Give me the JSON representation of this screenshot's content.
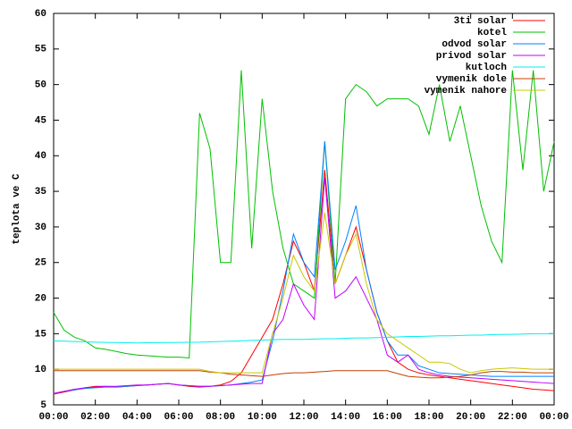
{
  "chart_data": {
    "type": "line",
    "ylabel": "teplota ve C",
    "x": [
      0,
      0.5,
      1,
      1.5,
      2,
      2.5,
      3,
      3.5,
      4,
      4.5,
      5,
      5.5,
      6,
      6.5,
      7,
      7.5,
      8,
      8.5,
      9,
      9.5,
      10,
      10.5,
      11,
      11.5,
      12,
      12.5,
      13,
      13.5,
      14,
      14.5,
      15,
      15.5,
      16,
      16.5,
      17,
      17.5,
      18,
      18.5,
      19,
      19.5,
      20,
      20.5,
      21,
      21.5,
      22,
      22.5,
      23,
      23.5,
      24
    ],
    "xlim": [
      0,
      24
    ],
    "xticks": [
      {
        "value": 0,
        "label": "00:00"
      },
      {
        "value": 2,
        "label": "02:00"
      },
      {
        "value": 4,
        "label": "04:00"
      },
      {
        "value": 6,
        "label": "06:00"
      },
      {
        "value": 8,
        "label": "08:00"
      },
      {
        "value": 10,
        "label": "10:00"
      },
      {
        "value": 12,
        "label": "12:00"
      },
      {
        "value": 14,
        "label": "14:00"
      },
      {
        "value": 16,
        "label": "16:00"
      },
      {
        "value": 18,
        "label": "18:00"
      },
      {
        "value": 20,
        "label": "20:00"
      },
      {
        "value": 22,
        "label": "22:00"
      },
      {
        "value": 24,
        "label": "00:00"
      }
    ],
    "ylim": [
      5,
      60
    ],
    "yticks": [
      5,
      10,
      15,
      20,
      25,
      30,
      35,
      40,
      45,
      50,
      55,
      60
    ],
    "legend": "top-right",
    "series": [
      {
        "name": "3ti solar",
        "color": "#ff0000",
        "values": [
          6.5,
          6.8,
          7.1,
          7.4,
          7.6,
          7.6,
          7.5,
          7.6,
          7.7,
          7.8,
          7.9,
          8.0,
          7.8,
          7.6,
          7.5,
          7.6,
          7.8,
          8.3,
          9.5,
          12,
          14.5,
          17,
          22,
          28,
          25,
          21,
          38,
          22,
          26,
          30,
          24,
          18,
          14,
          11,
          10,
          9.5,
          9.2,
          9,
          8.8,
          8.6,
          8.4,
          8.2,
          8,
          7.8,
          7.6,
          7.4,
          7.2,
          7.1,
          7.0
        ]
      },
      {
        "name": "kotel",
        "color": "#00c000",
        "values": [
          18,
          15.5,
          14.5,
          14,
          13,
          12.8,
          12.5,
          12.2,
          12,
          11.9,
          11.8,
          11.7,
          11.7,
          11.6,
          46,
          41,
          25,
          25,
          52,
          27,
          48,
          35,
          27,
          22,
          21,
          20,
          42,
          22,
          48,
          50,
          49,
          47,
          48,
          48,
          48,
          47,
          43,
          50,
          42,
          47,
          40,
          33,
          28,
          25,
          52,
          38,
          52,
          35,
          42
        ]
      },
      {
        "name": "odvod solar",
        "color": "#0080ff",
        "values": [
          6.6,
          6.9,
          7.1,
          7.3,
          7.4,
          7.5,
          7.5,
          7.6,
          7.7,
          7.8,
          7.9,
          8.0,
          7.8,
          7.7,
          7.6,
          7.6,
          7.7,
          7.8,
          8.0,
          8.2,
          8.5,
          14,
          21,
          29,
          25,
          23,
          42,
          24,
          28,
          33,
          24,
          18,
          14,
          12,
          12,
          10.5,
          10,
          9.5,
          9.4,
          9.3,
          9.2,
          9.1,
          9,
          9,
          9,
          9,
          9,
          9,
          9
        ]
      },
      {
        "name": "privod solar",
        "color": "#c000ff",
        "values": [
          6.6,
          6.9,
          7.2,
          7.4,
          7.5,
          7.6,
          7.6,
          7.7,
          7.8,
          7.8,
          7.9,
          8.0,
          7.8,
          7.7,
          7.6,
          7.6,
          7.7,
          7.8,
          7.9,
          8.0,
          8.0,
          15,
          17,
          22,
          19,
          17,
          37,
          20,
          21,
          23,
          20,
          17,
          12,
          11,
          12,
          10,
          9.5,
          9.2,
          9,
          8.9,
          8.8,
          8.7,
          8.6,
          8.5,
          8.4,
          8.3,
          8.2,
          8.1,
          8
        ]
      },
      {
        "name": "kutloch",
        "color": "#00eeee",
        "values": [
          14,
          13.95,
          13.9,
          13.85,
          13.8,
          13.78,
          13.76,
          13.73,
          13.7,
          13.72,
          13.74,
          13.76,
          13.78,
          13.79,
          13.8,
          13.85,
          13.9,
          13.95,
          14,
          14.05,
          14.1,
          14.15,
          14.2,
          14.2,
          14.2,
          14.25,
          14.3,
          14.3,
          14.35,
          14.4,
          14.4,
          14.45,
          14.5,
          14.55,
          14.6,
          14.6,
          14.65,
          14.7,
          14.7,
          14.75,
          14.8,
          14.8,
          14.85,
          14.9,
          14.9,
          14.95,
          15,
          15,
          15
        ]
      },
      {
        "name": "vymenik dole",
        "color": "#c04000",
        "values": [
          9.8,
          9.8,
          9.8,
          9.8,
          9.8,
          9.8,
          9.8,
          9.8,
          9.8,
          9.8,
          9.8,
          9.8,
          9.8,
          9.8,
          9.8,
          9.6,
          9.5,
          9.3,
          9.2,
          9.1,
          9,
          9.2,
          9.4,
          9.5,
          9.5,
          9.6,
          9.7,
          9.8,
          9.8,
          9.8,
          9.8,
          9.8,
          9.8,
          9.4,
          9,
          8.9,
          8.8,
          8.8,
          8.9,
          9,
          9.2,
          9.5,
          9.7,
          9.7,
          9.6,
          9.6,
          9.5,
          9.5,
          9.5
        ]
      },
      {
        "name": "vymenik nahore",
        "color": "#c8c800",
        "values": [
          10,
          10,
          10,
          10,
          10,
          10,
          10,
          10,
          10,
          10,
          10,
          10,
          10,
          10,
          10,
          9.7,
          9.5,
          9.5,
          9.5,
          9.5,
          9.5,
          15,
          20,
          26,
          23,
          21,
          32,
          22,
          26,
          29,
          22,
          17,
          15,
          14,
          13,
          12,
          11,
          11,
          10.8,
          10,
          9.5,
          9.8,
          10,
          10.1,
          10.2,
          10.1,
          10,
          10,
          10
        ]
      }
    ]
  }
}
